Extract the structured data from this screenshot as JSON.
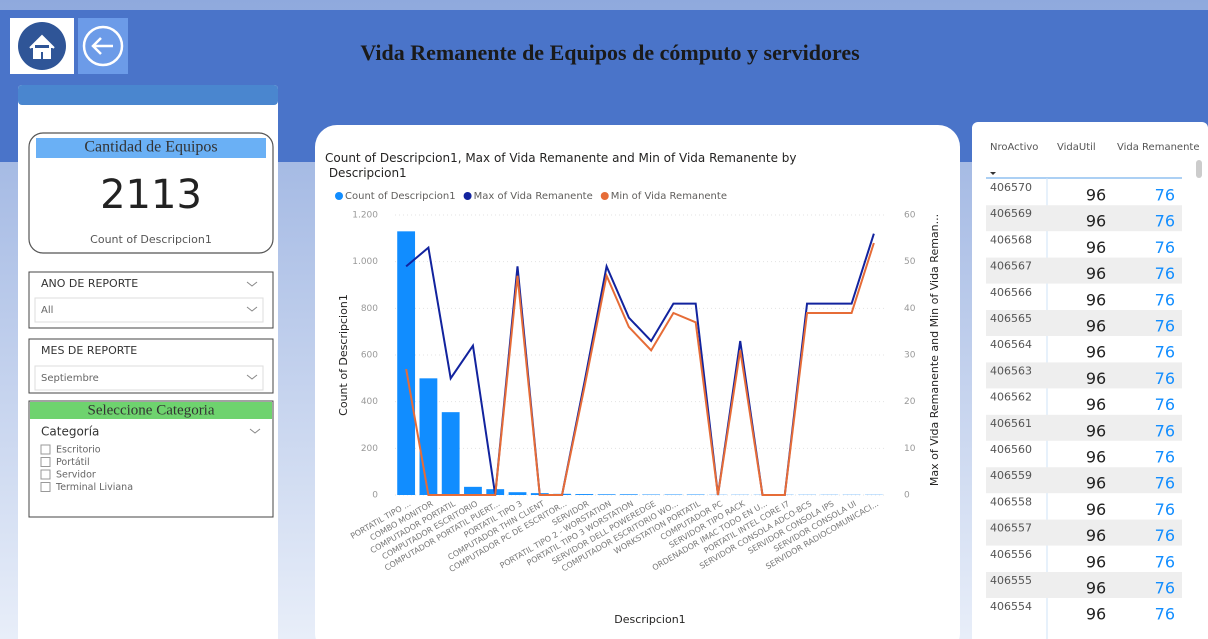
{
  "header": {
    "title": "Vida Remanente de Equipos de cómputo y servidores"
  },
  "card": {
    "title": "Cantidad de Equipos",
    "value": "2113",
    "caption": "Count of Descripcion1"
  },
  "slicers": [
    {
      "title": "ANO DE REPORTE",
      "selected": "All"
    },
    {
      "title": "MES DE REPORTE",
      "selected": "Septiembre"
    }
  ],
  "category_slicer": {
    "heading": "Seleccione Categoria",
    "title": "Categoría",
    "options": [
      "Escritorio",
      "Portátil",
      "Servidor",
      "Terminal Liviana"
    ]
  },
  "table": {
    "columns": [
      "NroActivo",
      "VidaUtil",
      "Vida Remanente"
    ],
    "rows": [
      [
        "406570",
        "96",
        "76"
      ],
      [
        "406569",
        "96",
        "76"
      ],
      [
        "406568",
        "96",
        "76"
      ],
      [
        "406567",
        "96",
        "76"
      ],
      [
        "406566",
        "96",
        "76"
      ],
      [
        "406565",
        "96",
        "76"
      ],
      [
        "406564",
        "96",
        "76"
      ],
      [
        "406563",
        "96",
        "76"
      ],
      [
        "406562",
        "96",
        "76"
      ],
      [
        "406561",
        "96",
        "76"
      ],
      [
        "406560",
        "96",
        "76"
      ],
      [
        "406559",
        "96",
        "76"
      ],
      [
        "406558",
        "96",
        "76"
      ],
      [
        "406557",
        "96",
        "76"
      ],
      [
        "406556",
        "96",
        "76"
      ],
      [
        "406555",
        "96",
        "76"
      ],
      [
        "406554",
        "96",
        "76"
      ]
    ]
  },
  "chart_data": {
    "type": "bar_line",
    "title": "Count of Descripcion1, Max of Vida Remanente and Min of Vida Remanente by Descripcion1",
    "x_label": "Descripcion1",
    "y_label": "Count of Descripcion1",
    "y2_label": "Max of Vida Remanente and Min of Vida Reman...",
    "categories": [
      "PORTATIL TIPO ...",
      "COMBO MONITOR",
      "COMPUTADOR PORTATIL",
      "COMPUTADOR ESCRITORIO",
      "COMPUTADOR PORTATIL PUERT...",
      "PORTATIL TIPO 3",
      "COMPUTADOR THIN CLIENT",
      "COMPUTADOR PC DE ESCRITOR...",
      "SERVIDOR",
      "PORTATIL TIPO 2 - WORSTATION",
      "PORTATIL TIPO 3 WORSTATION",
      "SERVIDOR DELL POWEREDGE",
      "COMPUTADOR ESCRITORIO WO...",
      "WORKSTATION PORTATIL",
      "COMPUTADOR PC",
      "SERVIDOR TIPO RACK",
      "ORDENADOR IMAC TODO EN U...",
      "PORTATIL INTEL CORE I7",
      "SERVIDOR CONSOLA ADCO-BCS",
      "SERVIDOR CONSOLA IPS",
      "SERVIDOR CONSOLA UI",
      "SERVIDOR RADIOCOMUNICACI..."
    ],
    "series": [
      {
        "name": "Count of Descripcion1",
        "color": "#118dff",
        "kind": "bar",
        "values": [
          1130,
          500,
          355,
          35,
          25,
          12,
          8,
          5,
          4,
          3,
          3,
          2,
          2,
          2,
          1,
          1,
          1,
          1,
          1,
          1,
          1,
          1
        ]
      },
      {
        "name": "Max of Vida Remanente",
        "color": "#12239e",
        "kind": "line",
        "axis": "y2",
        "values": [
          49,
          53,
          25,
          32,
          0,
          49,
          0,
          0,
          24,
          49,
          38,
          33,
          41,
          41,
          0,
          33,
          0,
          0,
          41,
          41,
          41,
          56
        ]
      },
      {
        "name": "Min of Vida Remanente",
        "color": "#e66c37",
        "kind": "line",
        "axis": "y2",
        "values": [
          27,
          0,
          0,
          0,
          0,
          47,
          0,
          0,
          23,
          47,
          36,
          31,
          39,
          37,
          0,
          31,
          0,
          0,
          39,
          39,
          39,
          54
        ]
      }
    ],
    "ylim": [
      0,
      1200
    ],
    "yticks": [
      0,
      200,
      400,
      600,
      800,
      {
        "value": 1000,
        "label": "1.000"
      },
      {
        "value": 1200,
        "label": "1.200"
      }
    ],
    "y2lim": [
      0,
      60
    ],
    "y2ticks": [
      0,
      10,
      20,
      30,
      40,
      50,
      60
    ],
    "grid": true
  }
}
